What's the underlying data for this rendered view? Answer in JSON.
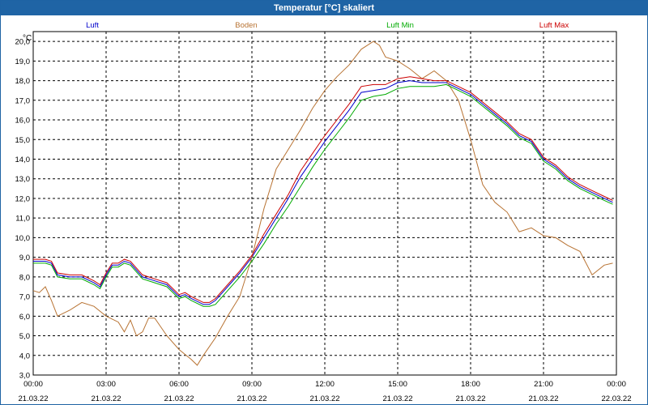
{
  "window": {
    "title": "Temperatur [°C] skaliert"
  },
  "chart_data": {
    "type": "line",
    "title": "Temperatur [°C] skaliert",
    "ylabel": "°C",
    "ylim": [
      3.0,
      20.5
    ],
    "y_ticks": [
      "3,0",
      "4,0",
      "5,0",
      "6,0",
      "7,0",
      "8,0",
      "9,0",
      "10,0",
      "11,0",
      "12,0",
      "13,0",
      "14,0",
      "15,0",
      "16,0",
      "17,0",
      "18,0",
      "19,0",
      "20,0"
    ],
    "x_ticks": [
      {
        "time": "00:00",
        "date": "21.03.22"
      },
      {
        "time": "03:00",
        "date": "21.03.22"
      },
      {
        "time": "06:00",
        "date": "21.03.22"
      },
      {
        "time": "09:00",
        "date": "21.03.22"
      },
      {
        "time": "12:00",
        "date": "21.03.22"
      },
      {
        "time": "15:00",
        "date": "21.03.22"
      },
      {
        "time": "18:00",
        "date": "21.03.22"
      },
      {
        "time": "21:00",
        "date": "21.03.22"
      },
      {
        "time": "00:00",
        "date": "22.03.22"
      }
    ],
    "grid": true,
    "legend_position": "top",
    "series": [
      {
        "name": "Luft",
        "color": "#0000cc",
        "points": [
          [
            0.0,
            8.8
          ],
          [
            0.5,
            8.8
          ],
          [
            0.75,
            8.7
          ],
          [
            1.0,
            8.1
          ],
          [
            1.5,
            8.0
          ],
          [
            2.0,
            8.0
          ],
          [
            2.5,
            7.7
          ],
          [
            2.75,
            7.5
          ],
          [
            3.0,
            8.1
          ],
          [
            3.25,
            8.6
          ],
          [
            3.5,
            8.6
          ],
          [
            3.75,
            8.8
          ],
          [
            4.0,
            8.7
          ],
          [
            4.5,
            8.0
          ],
          [
            5.0,
            7.8
          ],
          [
            5.5,
            7.6
          ],
          [
            6.0,
            7.0
          ],
          [
            6.25,
            7.1
          ],
          [
            6.5,
            6.9
          ],
          [
            7.0,
            6.6
          ],
          [
            7.25,
            6.6
          ],
          [
            7.5,
            6.8
          ],
          [
            8.0,
            7.5
          ],
          [
            8.5,
            8.2
          ],
          [
            9.0,
            9.0
          ],
          [
            9.5,
            10.0
          ],
          [
            10.0,
            11.0
          ],
          [
            10.5,
            12.0
          ],
          [
            11.0,
            13.1
          ],
          [
            11.5,
            14.0
          ],
          [
            12.0,
            14.9
          ],
          [
            12.5,
            15.7
          ],
          [
            13.0,
            16.5
          ],
          [
            13.5,
            17.4
          ],
          [
            14.0,
            17.5
          ],
          [
            14.5,
            17.6
          ],
          [
            15.0,
            17.9
          ],
          [
            15.5,
            18.0
          ],
          [
            16.0,
            17.9
          ],
          [
            16.5,
            17.9
          ],
          [
            17.0,
            17.9
          ],
          [
            17.5,
            17.6
          ],
          [
            18.0,
            17.3
          ],
          [
            18.5,
            16.8
          ],
          [
            19.0,
            16.3
          ],
          [
            19.5,
            15.8
          ],
          [
            20.0,
            15.2
          ],
          [
            20.5,
            14.9
          ],
          [
            21.0,
            14.0
          ],
          [
            21.5,
            13.6
          ],
          [
            22.0,
            13.0
          ],
          [
            22.5,
            12.6
          ],
          [
            23.0,
            12.3
          ],
          [
            23.5,
            12.0
          ],
          [
            23.85,
            11.8
          ]
        ]
      },
      {
        "name": "Boden",
        "color": "#b87333",
        "points": [
          [
            0.0,
            7.3
          ],
          [
            0.25,
            7.2
          ],
          [
            0.5,
            7.5
          ],
          [
            0.75,
            6.8
          ],
          [
            1.0,
            6.0
          ],
          [
            1.5,
            6.3
          ],
          [
            2.0,
            6.7
          ],
          [
            2.5,
            6.5
          ],
          [
            3.0,
            6.0
          ],
          [
            3.5,
            5.7
          ],
          [
            3.75,
            5.2
          ],
          [
            4.0,
            5.8
          ],
          [
            4.25,
            5.0
          ],
          [
            4.5,
            5.2
          ],
          [
            4.75,
            5.9
          ],
          [
            5.0,
            5.9
          ],
          [
            5.5,
            5.0
          ],
          [
            6.0,
            4.3
          ],
          [
            6.5,
            3.8
          ],
          [
            6.75,
            3.5
          ],
          [
            7.0,
            4.0
          ],
          [
            7.5,
            4.9
          ],
          [
            8.0,
            6.0
          ],
          [
            8.5,
            7.0
          ],
          [
            9.0,
            9.0
          ],
          [
            9.5,
            11.5
          ],
          [
            10.0,
            13.5
          ],
          [
            10.5,
            14.5
          ],
          [
            11.0,
            15.5
          ],
          [
            11.5,
            16.6
          ],
          [
            12.0,
            17.5
          ],
          [
            12.5,
            18.2
          ],
          [
            13.0,
            18.8
          ],
          [
            13.5,
            19.6
          ],
          [
            14.0,
            20.0
          ],
          [
            14.25,
            19.8
          ],
          [
            14.5,
            19.2
          ],
          [
            15.0,
            19.0
          ],
          [
            15.5,
            18.6
          ],
          [
            16.0,
            18.1
          ],
          [
            16.5,
            18.5
          ],
          [
            17.0,
            18.0
          ],
          [
            17.5,
            17.0
          ],
          [
            18.0,
            15.0
          ],
          [
            18.5,
            12.7
          ],
          [
            19.0,
            11.8
          ],
          [
            19.5,
            11.3
          ],
          [
            20.0,
            10.3
          ],
          [
            20.5,
            10.5
          ],
          [
            21.0,
            10.1
          ],
          [
            21.5,
            10.0
          ],
          [
            22.0,
            9.6
          ],
          [
            22.5,
            9.3
          ],
          [
            23.0,
            8.1
          ],
          [
            23.5,
            8.6
          ],
          [
            23.85,
            8.7
          ]
        ]
      },
      {
        "name": "Luft Min",
        "color": "#00aa00",
        "points": [
          [
            0.0,
            8.7
          ],
          [
            0.5,
            8.7
          ],
          [
            0.75,
            8.6
          ],
          [
            1.0,
            8.0
          ],
          [
            1.5,
            7.9
          ],
          [
            2.0,
            7.9
          ],
          [
            2.5,
            7.6
          ],
          [
            2.75,
            7.4
          ],
          [
            3.0,
            8.0
          ],
          [
            3.25,
            8.5
          ],
          [
            3.5,
            8.5
          ],
          [
            3.75,
            8.7
          ],
          [
            4.0,
            8.6
          ],
          [
            4.5,
            7.9
          ],
          [
            5.0,
            7.7
          ],
          [
            5.5,
            7.5
          ],
          [
            6.0,
            6.9
          ],
          [
            6.25,
            7.0
          ],
          [
            6.5,
            6.8
          ],
          [
            7.0,
            6.5
          ],
          [
            7.25,
            6.5
          ],
          [
            7.5,
            6.6
          ],
          [
            8.0,
            7.3
          ],
          [
            8.5,
            8.0
          ],
          [
            9.0,
            8.8
          ],
          [
            9.5,
            9.7
          ],
          [
            10.0,
            10.7
          ],
          [
            10.5,
            11.6
          ],
          [
            11.0,
            12.6
          ],
          [
            11.5,
            13.6
          ],
          [
            12.0,
            14.5
          ],
          [
            12.5,
            15.3
          ],
          [
            13.0,
            16.1
          ],
          [
            13.5,
            17.0
          ],
          [
            14.0,
            17.2
          ],
          [
            14.5,
            17.3
          ],
          [
            15.0,
            17.6
          ],
          [
            15.5,
            17.7
          ],
          [
            16.0,
            17.7
          ],
          [
            16.5,
            17.7
          ],
          [
            17.0,
            17.8
          ],
          [
            17.5,
            17.5
          ],
          [
            18.0,
            17.2
          ],
          [
            18.5,
            16.7
          ],
          [
            19.0,
            16.2
          ],
          [
            19.5,
            15.7
          ],
          [
            20.0,
            15.1
          ],
          [
            20.5,
            14.8
          ],
          [
            21.0,
            13.9
          ],
          [
            21.5,
            13.5
          ],
          [
            22.0,
            12.9
          ],
          [
            22.5,
            12.5
          ],
          [
            23.0,
            12.2
          ],
          [
            23.5,
            11.9
          ],
          [
            23.85,
            11.7
          ]
        ]
      },
      {
        "name": "Luft Max",
        "color": "#cc0000",
        "points": [
          [
            0.0,
            8.9
          ],
          [
            0.5,
            8.9
          ],
          [
            0.75,
            8.8
          ],
          [
            1.0,
            8.2
          ],
          [
            1.5,
            8.1
          ],
          [
            2.0,
            8.1
          ],
          [
            2.5,
            7.8
          ],
          [
            2.75,
            7.6
          ],
          [
            3.0,
            8.2
          ],
          [
            3.25,
            8.7
          ],
          [
            3.5,
            8.7
          ],
          [
            3.75,
            8.9
          ],
          [
            4.0,
            8.8
          ],
          [
            4.5,
            8.1
          ],
          [
            5.0,
            7.9
          ],
          [
            5.5,
            7.7
          ],
          [
            6.0,
            7.1
          ],
          [
            6.25,
            7.2
          ],
          [
            6.5,
            7.0
          ],
          [
            7.0,
            6.7
          ],
          [
            7.25,
            6.7
          ],
          [
            7.5,
            6.9
          ],
          [
            8.0,
            7.6
          ],
          [
            8.5,
            8.3
          ],
          [
            9.0,
            9.1
          ],
          [
            9.5,
            10.2
          ],
          [
            10.0,
            11.2
          ],
          [
            10.5,
            12.2
          ],
          [
            11.0,
            13.4
          ],
          [
            11.5,
            14.3
          ],
          [
            12.0,
            15.2
          ],
          [
            12.5,
            16.0
          ],
          [
            13.0,
            16.8
          ],
          [
            13.5,
            17.7
          ],
          [
            14.0,
            17.8
          ],
          [
            14.5,
            17.8
          ],
          [
            15.0,
            18.1
          ],
          [
            15.5,
            18.2
          ],
          [
            16.0,
            18.1
          ],
          [
            16.5,
            18.0
          ],
          [
            17.0,
            18.0
          ],
          [
            17.5,
            17.7
          ],
          [
            18.0,
            17.4
          ],
          [
            18.5,
            16.9
          ],
          [
            19.0,
            16.4
          ],
          [
            19.5,
            15.9
          ],
          [
            20.0,
            15.3
          ],
          [
            20.5,
            15.0
          ],
          [
            21.0,
            14.1
          ],
          [
            21.5,
            13.7
          ],
          [
            22.0,
            13.1
          ],
          [
            22.5,
            12.7
          ],
          [
            23.0,
            12.4
          ],
          [
            23.5,
            12.1
          ],
          [
            23.85,
            11.9
          ]
        ]
      }
    ]
  }
}
